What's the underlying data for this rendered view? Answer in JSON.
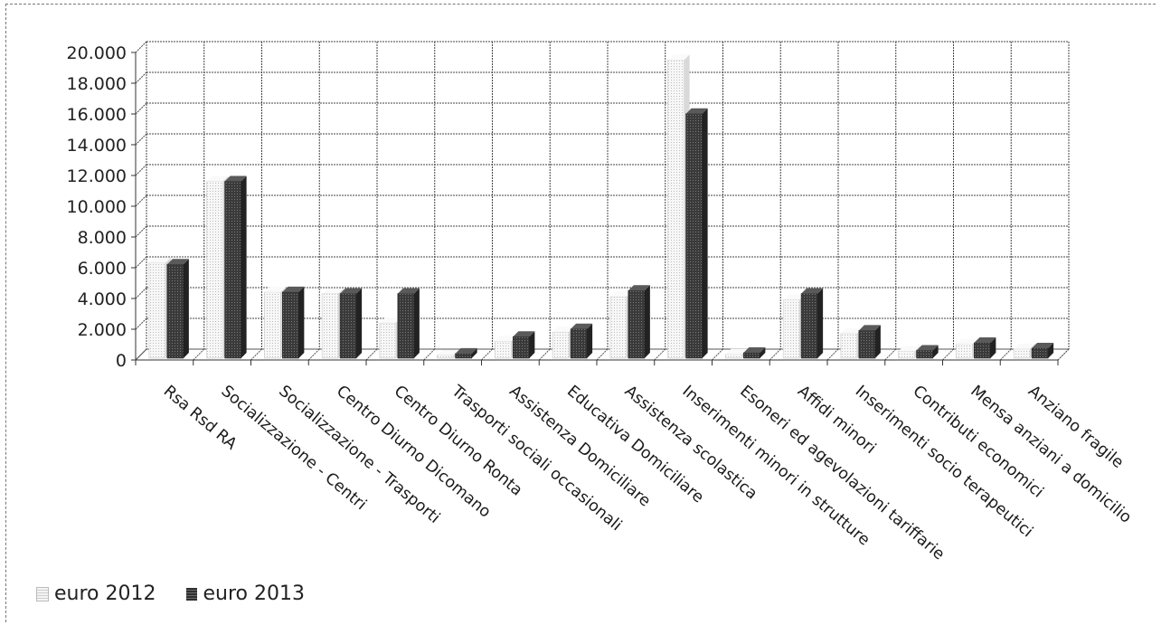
{
  "chart_data": {
    "type": "bar",
    "categories": [
      "Rsa Rsd RA",
      "Socializzazione - Centri",
      "Socializzazione - Trasporti",
      "Centro Diurno Dicomano",
      "Centro Diurno Ronta",
      "Trasporti sociali occasionali",
      "Assistenza Domiciliare",
      "Educativa Domiciliare",
      "Assistenza scolastica",
      "Inserimenti minori in strutture",
      "Esoneri ed agevolazioni tariffarie",
      "Affidi minori",
      "Inserimenti socio terapeutici",
      "Contributi economici",
      "Mensa anziani a domicilio",
      "Anziano fragile"
    ],
    "series": [
      {
        "name": "euro 2012",
        "values": [
          6200,
          11500,
          4300,
          4200,
          2300,
          200,
          1100,
          1700,
          4000,
          19400,
          250,
          3800,
          1600,
          450,
          900,
          600
        ]
      },
      {
        "name": "euro 2013",
        "values": [
          6100,
          11500,
          4300,
          4200,
          4200,
          300,
          1400,
          1900,
          4400,
          15900,
          350,
          4200,
          1800,
          500,
          1000,
          650
        ]
      }
    ],
    "title": "",
    "xlabel": "",
    "ylabel": "",
    "ylim": [
      0,
      20000
    ],
    "yticks": [
      "0",
      "2.000",
      "4.000",
      "6.000",
      "8.000",
      "10.000",
      "12.000",
      "14.000",
      "16.000",
      "18.000",
      "20.000"
    ],
    "grid": true,
    "legend_position": "bottom-left"
  }
}
